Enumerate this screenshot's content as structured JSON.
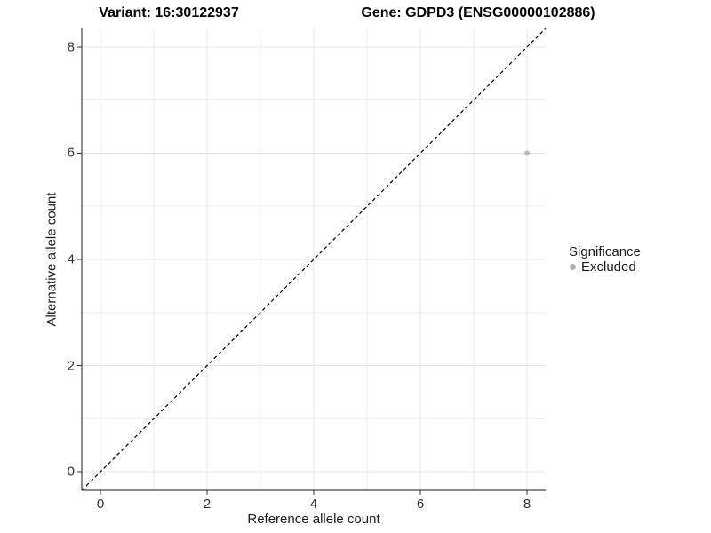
{
  "titles": {
    "variant": "Variant: 16:30122937",
    "gene": "Gene: GDPD3 (ENSG00000102886)"
  },
  "chart_data": {
    "type": "scatter",
    "title_left": "Variant: 16:30122937",
    "title_right": "Gene: GDPD3 (ENSG00000102886)",
    "xlabel": "Reference allele count",
    "ylabel": "Alternative allele count",
    "xlim": [
      -0.35,
      8.35
    ],
    "ylim": [
      -0.35,
      8.35
    ],
    "x_ticks": [
      0,
      2,
      4,
      6,
      8
    ],
    "y_ticks": [
      0,
      2,
      4,
      6,
      8
    ],
    "x_minor_ticks": [
      1,
      3,
      5,
      7
    ],
    "y_minor_ticks": [
      1,
      3,
      5,
      7
    ],
    "grid": true,
    "identity_line": {
      "style": "dashed",
      "color": "#000000",
      "slope": 1,
      "intercept": 0
    },
    "series": [
      {
        "name": "Excluded",
        "color": "#b9b9b9",
        "points": [
          {
            "x": 8,
            "y": 6
          }
        ]
      }
    ],
    "legend": {
      "position": "right",
      "title": "Significance",
      "entries": [
        {
          "label": "Excluded",
          "color": "#b0b0b0"
        }
      ]
    },
    "colors": {
      "grid_major": "#e4e4e4",
      "grid_minor": "#eeeeee",
      "axis_line": "#1a1a1a",
      "tick_mark": "#333333"
    }
  }
}
